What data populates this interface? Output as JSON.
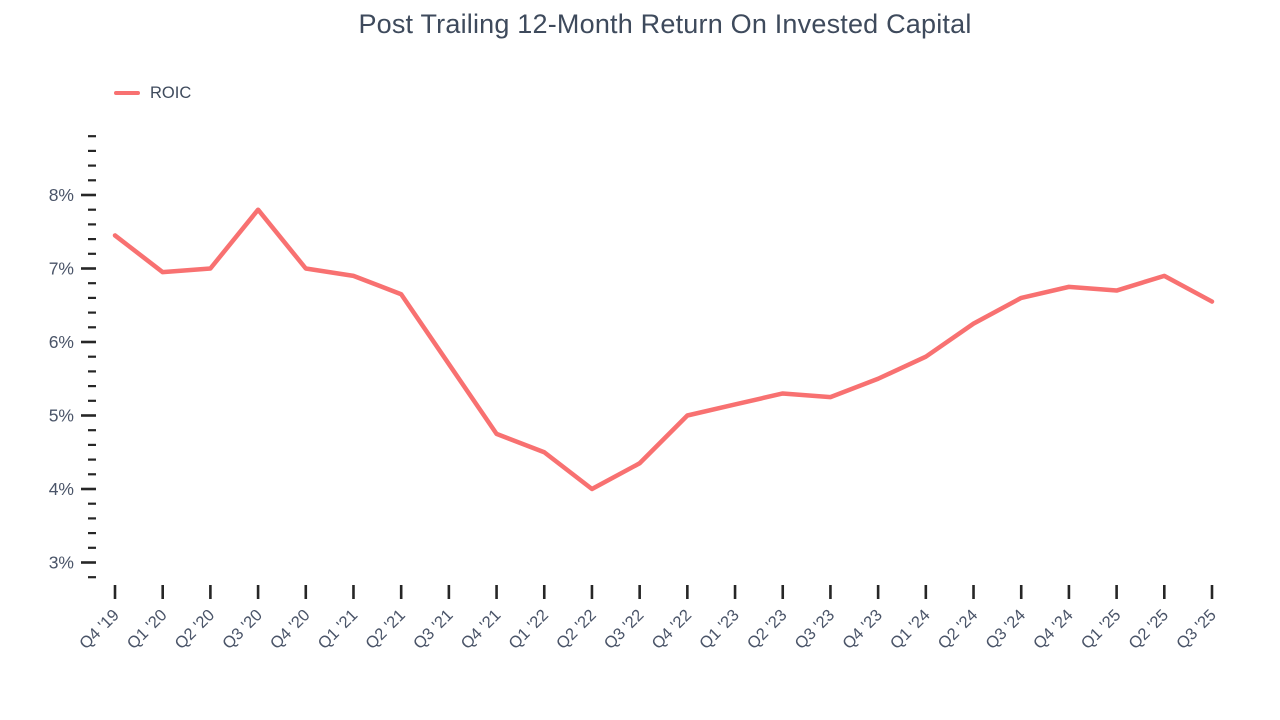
{
  "title": "Post Trailing 12-Month Return On Invested Capital",
  "legend": {
    "label": "ROIC",
    "position": "top-left"
  },
  "colors": {
    "line": "#f87171",
    "title_text": "#3e4a5c",
    "axis_label_text": "#4a5468",
    "tick": "#262626",
    "background": "#ffffff"
  },
  "chart_data": {
    "type": "line",
    "title": "Post Trailing 12-Month Return On Invested Capital",
    "xlabel": "",
    "ylabel": "",
    "grid": false,
    "legend_position": "top-left",
    "categories": [
      "Q4 '19",
      "Q1 '20",
      "Q2 '20",
      "Q3 '20",
      "Q4 '20",
      "Q1 '21",
      "Q2 '21",
      "Q3 '21",
      "Q4 '21",
      "Q1 '22",
      "Q2 '22",
      "Q3 '22",
      "Q4 '22",
      "Q1 '23",
      "Q2 '23",
      "Q3 '23",
      "Q4 '23",
      "Q1 '24",
      "Q2 '24",
      "Q3 '24",
      "Q4 '24",
      "Q1 '25",
      "Q2 '25",
      "Q3 '25"
    ],
    "series": [
      {
        "name": "ROIC",
        "color": "#f87171",
        "values": [
          7.45,
          6.95,
          7.0,
          7.8,
          7.0,
          6.9,
          6.65,
          5.7,
          4.75,
          4.5,
          4.0,
          4.35,
          5.0,
          5.15,
          5.3,
          5.25,
          5.5,
          5.8,
          6.25,
          6.6,
          6.75,
          6.7,
          6.9,
          6.55
        ]
      }
    ],
    "y_axis": {
      "unit": "%",
      "ylim": [
        2.8,
        8.8
      ],
      "minor_tick_step": 0.2,
      "major_tick_labels": [
        "3%",
        "4%",
        "5%",
        "6%",
        "7%",
        "8%"
      ],
      "major_tick_values": [
        3,
        4,
        5,
        6,
        7,
        8
      ]
    }
  }
}
